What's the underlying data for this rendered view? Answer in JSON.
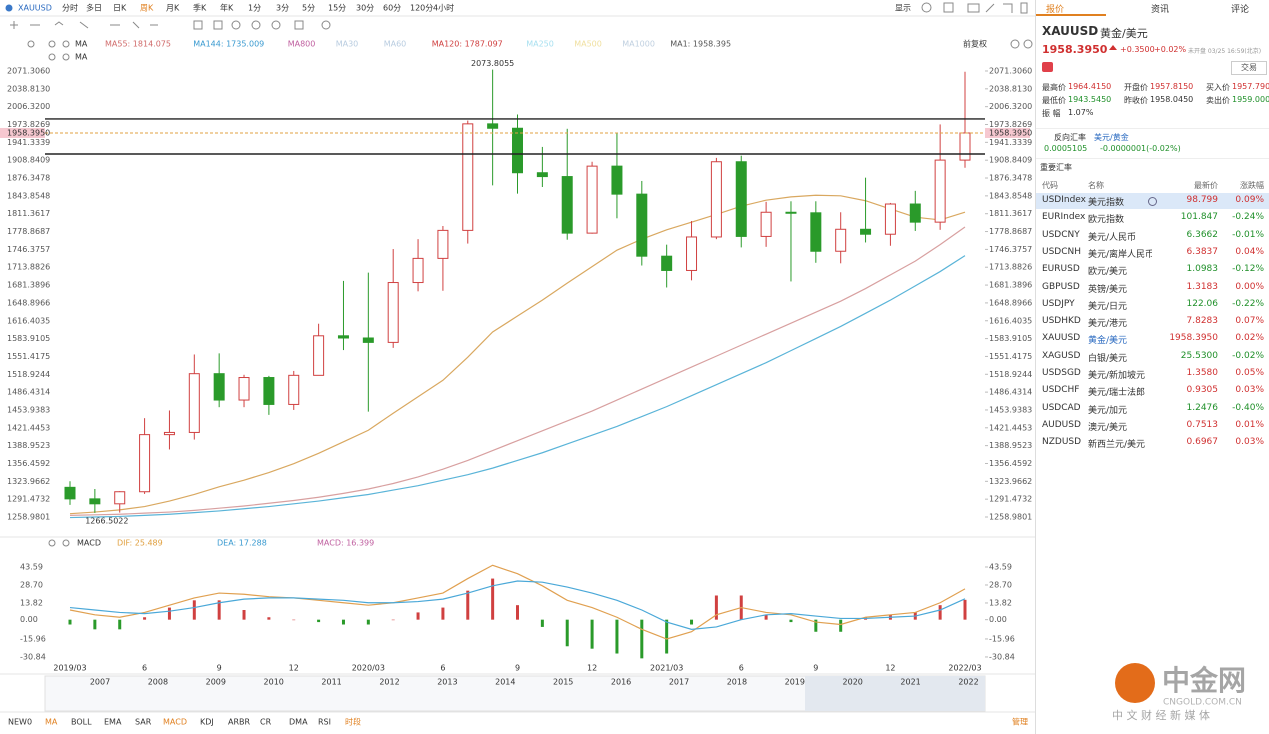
{
  "toolbar": {
    "symbol": "XAUUSD",
    "periods": [
      "分时",
      "多日",
      "日K",
      "周K",
      "月K",
      "季K",
      "年K",
      "1分",
      "3分",
      "5分",
      "15分",
      "30分",
      "60分",
      "120分",
      "4小时"
    ],
    "active": 3,
    "display": "显示"
  },
  "main_chart": {
    "type": "candlestick",
    "indicator": "MA",
    "adjust": "前复权",
    "legend": [
      {
        "text": "MA55: 1814.075",
        "color": "#d06a6a"
      },
      {
        "text": "MA144: 1735.009",
        "color": "#3a9ad0"
      },
      {
        "text": "MA800",
        "color": "#c060a0"
      },
      {
        "text": "MA30",
        "color": "#b8cce0"
      },
      {
        "text": "MA60",
        "color": "#b8cce0"
      },
      {
        "text": "MA120: 1787.097",
        "color": "#d04040"
      },
      {
        "text": "MA250",
        "color": "#a8e0f0"
      },
      {
        "text": "MA500",
        "color": "#f0e0a0"
      },
      {
        "text": "MA1000",
        "color": "#c0d0e0"
      },
      {
        "text": "MA1: 1958.395",
        "color": "#555555"
      }
    ],
    "categories": [
      "2019/03",
      null,
      null,
      "6",
      null,
      null,
      "9",
      null,
      null,
      "12",
      null,
      null,
      "2020/03",
      null,
      null,
      "6",
      null,
      null,
      "9",
      null,
      null,
      "12",
      null,
      null,
      "2021/03",
      null,
      null,
      "6",
      null,
      null,
      "9",
      null,
      null,
      "12",
      null,
      null,
      "2022/03"
    ],
    "candles": [
      [
        1313,
        1324,
        1281,
        1292
      ],
      [
        1292,
        1310,
        1266.5022,
        1283
      ],
      [
        1283,
        1306,
        1267,
        1305
      ],
      [
        1305,
        1439,
        1301,
        1409
      ],
      [
        1409,
        1453,
        1382,
        1413
      ],
      [
        1413,
        1555,
        1400,
        1520
      ],
      [
        1520,
        1557,
        1459,
        1472
      ],
      [
        1472,
        1518,
        1459,
        1513
      ],
      [
        1513,
        1516,
        1445,
        1464
      ],
      [
        1464,
        1525,
        1454,
        1517
      ],
      [
        1517,
        1611,
        1517,
        1589
      ],
      [
        1589,
        1689,
        1563,
        1585
      ],
      [
        1585,
        1704,
        1451,
        1577
      ],
      [
        1577,
        1747,
        1567,
        1686
      ],
      [
        1686,
        1765,
        1670,
        1730
      ],
      [
        1730,
        1789,
        1671,
        1781
      ],
      [
        1781,
        1981,
        1757,
        1975
      ],
      [
        1975,
        2073.8055,
        1863,
        1967
      ],
      [
        1967,
        1992,
        1848,
        1886
      ],
      [
        1886,
        1933,
        1860,
        1879
      ],
      [
        1879,
        1966,
        1764,
        1776
      ],
      [
        1776,
        1906,
        1775,
        1898
      ],
      [
        1898,
        1959,
        1803,
        1847
      ],
      [
        1847,
        1871,
        1717,
        1734
      ],
      [
        1734,
        1755,
        1677,
        1708
      ],
      [
        1708,
        1798,
        1690,
        1769
      ],
      [
        1769,
        1913,
        1765,
        1906
      ],
      [
        1906,
        1917,
        1750,
        1770
      ],
      [
        1770,
        1833,
        1751,
        1814
      ],
      [
        1814,
        1834,
        1688,
        1813
      ],
      [
        1813,
        1834,
        1722,
        1743
      ],
      [
        1743,
        1814,
        1721,
        1783
      ],
      [
        1783,
        1877,
        1759,
        1774
      ],
      [
        1774,
        1831,
        1753,
        1829
      ],
      [
        1829,
        1853,
        1780,
        1796
      ],
      [
        1796,
        1974,
        1782,
        1909
      ],
      [
        1909,
        2070,
        1895,
        1958.395
      ]
    ],
    "up_color": "#d04040",
    "down_color": "#2a9a2a",
    "ma": [
      {
        "name": "MA55",
        "color": "#d9a860",
        "values": [
          1265,
          1268,
          1272,
          1278,
          1288,
          1300,
          1314,
          1326,
          1340,
          1356,
          1375,
          1396,
          1417,
          1448,
          1478,
          1508,
          1550,
          1596,
          1625,
          1654,
          1685,
          1715,
          1745,
          1765,
          1782,
          1796,
          1810,
          1825,
          1836,
          1842,
          1845,
          1844,
          1835,
          1820,
          1805,
          1800,
          1814.075
        ]
      },
      {
        "name": "MA120",
        "color": "#d8a0a0",
        "values": [
          1262,
          1263,
          1264,
          1266,
          1268,
          1271,
          1275,
          1279,
          1284,
          1289,
          1295,
          1302,
          1310,
          1320,
          1332,
          1346,
          1362,
          1380,
          1398,
          1416,
          1434,
          1452,
          1472,
          1492,
          1512,
          1532,
          1552,
          1572,
          1592,
          1612,
          1632,
          1652,
          1675,
          1700,
          1725,
          1755,
          1787.097
        ]
      },
      {
        "name": "MA144",
        "color": "#5ab4d8",
        "values": [
          1258,
          1259,
          1260,
          1262,
          1264,
          1267,
          1270,
          1274,
          1278,
          1283,
          1288,
          1294,
          1300,
          1308,
          1316,
          1326,
          1336,
          1348,
          1362,
          1376,
          1392,
          1408,
          1424,
          1442,
          1460,
          1480,
          1500,
          1520,
          1540,
          1562,
          1584,
          1606,
          1630,
          1654,
          1680,
          1706,
          1735.009
        ]
      }
    ],
    "ylim": [
      1226.2,
      2082.2
    ],
    "yticks": [
      {
        "value": 2071.306,
        "label": "2071.3060"
      },
      {
        "value": 2038.813,
        "label": "2038.8130"
      },
      {
        "value": 2006.32,
        "label": "2006.3200"
      },
      {
        "value": 1973.8269,
        "label": "1973.8269"
      },
      {
        "value": 1941.3339,
        "label": "1941.3339"
      },
      {
        "value": 1908.8409,
        "label": "1908.8409"
      },
      {
        "value": 1876.3478,
        "label": "1876.3478"
      },
      {
        "value": 1843.8548,
        "label": "1843.8548"
      },
      {
        "value": 1811.3617,
        "label": "1811.3617"
      },
      {
        "value": 1778.8687,
        "label": "1778.8687"
      },
      {
        "value": 1746.3757,
        "label": "1746.3757"
      },
      {
        "value": 1713.8826,
        "label": "1713.8826"
      },
      {
        "value": 1681.3896,
        "label": "1681.3896"
      },
      {
        "value": 1648.8966,
        "label": "1648.8966"
      },
      {
        "value": 1616.4035,
        "label": "1616.4035"
      },
      {
        "value": 1583.9105,
        "label": "1583.9105"
      },
      {
        "value": 1551.4175,
        "label": "1551.4175"
      },
      {
        "value": 1518.9244,
        "label": "1518.9244"
      },
      {
        "value": 1486.4314,
        "label": "1486.4314"
      },
      {
        "value": 1453.9383,
        "label": "1453.9383"
      },
      {
        "value": 1421.4453,
        "label": "1421.4453"
      },
      {
        "value": 1388.9523,
        "label": "1388.9523"
      },
      {
        "value": 1356.4592,
        "label": "1356.4592"
      },
      {
        "value": 1323.9662,
        "label": "1323.9662"
      },
      {
        "value": 1291.4732,
        "label": "1291.4732"
      },
      {
        "value": 1258.9801,
        "label": "1258.9801"
      }
    ],
    "hlines": [
      1983.9,
      1920.1
    ],
    "last_price": 1958.395,
    "last_price_label": "1958.3950",
    "high_label": "2073.8055",
    "low_label": "1266.5022"
  },
  "macd_chart": {
    "type": "macd",
    "legend": [
      {
        "text": "MACD",
        "color": "#333333"
      },
      {
        "text": "DIF: 25.489",
        "color": "#e0a040"
      },
      {
        "text": "DEA: 17.288",
        "color": "#3a9ad0"
      },
      {
        "text": "MACD: 16.399",
        "color": "#c060a0"
      }
    ],
    "dif": {
      "color": "#e0a050",
      "values": [
        8,
        4,
        2,
        6,
        12,
        18,
        22,
        21,
        19,
        18,
        16,
        14,
        12,
        14,
        18,
        22,
        34,
        45,
        38,
        28,
        16,
        10,
        2,
        -8,
        -16,
        -10,
        4,
        10,
        6,
        4,
        -2,
        -4,
        2,
        4,
        6,
        14,
        25.489
      ]
    },
    "dea": {
      "color": "#4aa8d8",
      "values": [
        10,
        8,
        6,
        5,
        7,
        10,
        14,
        17,
        18,
        18,
        17,
        16,
        14,
        14,
        15,
        17,
        22,
        28,
        32,
        31,
        27,
        22,
        16,
        8,
        -2,
        -8,
        -6,
        0,
        4,
        5,
        3,
        1,
        1,
        2,
        3,
        8,
        17.288
      ]
    },
    "histogram": [
      -4,
      -8,
      -8,
      2,
      10,
      16,
      16,
      8,
      2,
      0,
      -2,
      -4,
      -4,
      0,
      6,
      10,
      24,
      34,
      12,
      -6,
      -22,
      -24,
      -28,
      -32,
      -28,
      -4,
      20,
      20,
      4,
      -2,
      -10,
      -10,
      2,
      4,
      6,
      12,
      16.399
    ],
    "ylim": [
      -37.5,
      53.5
    ],
    "yticks": [
      {
        "value": 43.59,
        "label": "43.59"
      },
      {
        "value": 28.7,
        "label": "28.70"
      },
      {
        "value": 13.82,
        "label": "13.82"
      },
      {
        "value": 0,
        "label": "0.00"
      },
      {
        "value": -15.96,
        "label": "-15.96"
      },
      {
        "value": -30.84,
        "label": "-30.84"
      }
    ]
  },
  "overview_years": [
    "2007",
    "2008",
    "2009",
    "2010",
    "2011",
    "2012",
    "2013",
    "2014",
    "2015",
    "2016",
    "2017",
    "2018",
    "2019",
    "2020",
    "2021",
    "2022"
  ],
  "indicator_tabs": {
    "tabs": [
      "NEW0",
      "MA",
      "BOLL",
      "EMA",
      "SAR",
      "MACD",
      "KDJ",
      "ARBR",
      "CR",
      "DMA",
      "RSI",
      "时段"
    ],
    "active": [
      1,
      5,
      11
    ],
    "manage": "管理"
  },
  "quote_panel": {
    "tabs": [
      "报价",
      "资讯",
      "评论"
    ],
    "symbol": "XAUUSD",
    "name": "黄金/美元",
    "price": "1958.3950",
    "change": "+0.3500",
    "change_pct": "+0.02%",
    "status": "未开盘 03/25 16:59(北京)",
    "button": "交易",
    "stats": [
      {
        "label": "最高价",
        "value": "1964.4150"
      },
      {
        "label": "开盘价",
        "value": "1957.8150"
      },
      {
        "label": "买入价",
        "value": "1957.7900"
      },
      {
        "label": "最低价",
        "value": "1943.5450"
      },
      {
        "label": "昨收价",
        "value": "1958.0450"
      },
      {
        "label": "卖出价",
        "value": "1959.0000"
      }
    ],
    "amplitude": {
      "label": "振 幅",
      "value": "1.07%"
    },
    "reverse": {
      "label": "反向汇率",
      "pair": "美元/黄金",
      "price": "0.0005105",
      "change": "-0.0000001(-0.02%)"
    },
    "table": {
      "title": "重要汇率",
      "headers": [
        "代码",
        "名称",
        "最新价",
        "涨跌幅"
      ],
      "rows": [
        [
          "USDIndex",
          "美元指数",
          "98.799",
          "0.09%"
        ],
        [
          "EURIndex",
          "欧元指数",
          "101.847",
          "-0.24%"
        ],
        [
          "USDCNY",
          "美元/人民币",
          "6.3662",
          "-0.01%"
        ],
        [
          "USDCNH",
          "美元/离岸人民币",
          "6.3837",
          "0.04%"
        ],
        [
          "EURUSD",
          "欧元/美元",
          "1.0983",
          "-0.12%"
        ],
        [
          "GBPUSD",
          "英镑/美元",
          "1.3183",
          "0.00%"
        ],
        [
          "USDJPY",
          "美元/日元",
          "122.06",
          "-0.22%"
        ],
        [
          "USDHKD",
          "美元/港元",
          "7.8283",
          "0.07%"
        ],
        [
          "XAUUSD",
          "黄金/美元",
          "1958.3950",
          "0.02%"
        ],
        [
          "XAGUSD",
          "白银/美元",
          "25.5300",
          "-0.02%"
        ],
        [
          "USDSGD",
          "美元/新加坡元",
          "1.3580",
          "0.05%"
        ],
        [
          "USDCHF",
          "美元/瑞士法郎",
          "0.9305",
          "0.03%"
        ],
        [
          "USDCAD",
          "美元/加元",
          "1.2476",
          "-0.40%"
        ],
        [
          "AUDUSD",
          "澳元/美元",
          "0.7513",
          "0.01%"
        ],
        [
          "NZDUSD",
          "新西兰元/美元",
          "0.6967",
          "0.03%"
        ]
      ]
    }
  },
  "watermark": {
    "name": "中金网",
    "domain": "CNGOLD.COM.CN",
    "slogan": "中 文 财 经 新 媒 体"
  }
}
